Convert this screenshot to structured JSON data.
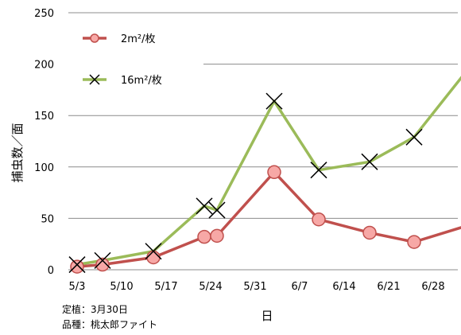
{
  "chart_data": {
    "type": "line",
    "ylabel": "捕虫数／面",
    "xlabel": "日",
    "ylim": [
      0,
      250
    ],
    "y_ticks": [
      0,
      50,
      100,
      150,
      200,
      250
    ],
    "x_tick_labels": [
      "5/3",
      "5/10",
      "5/17",
      "5/24",
      "5/31",
      "6/7",
      "6/14",
      "6/21",
      "6/28"
    ],
    "x_range_days": [
      0,
      63
    ],
    "grid": "horizontal",
    "legend_position": "top-left",
    "series": [
      {
        "name": "2m²/枚",
        "color": "#c0504d",
        "marker": "circle",
        "x": [
          0,
          4,
          12,
          20,
          22,
          31,
          38,
          46,
          53,
          63
        ],
        "y": [
          3,
          5,
          12,
          32,
          33,
          95,
          49,
          36,
          27,
          46
        ]
      },
      {
        "name": "16m²/枚",
        "color": "#9bbb59",
        "marker": "x",
        "x": [
          0,
          4,
          12,
          20,
          22,
          31,
          38,
          46,
          53,
          63
        ],
        "y": [
          5,
          9,
          18,
          62,
          58,
          164,
          97,
          105,
          129,
          207
        ]
      }
    ],
    "notes": [
      "定植：3月30日",
      "品種：桃太郎ファイト"
    ]
  }
}
